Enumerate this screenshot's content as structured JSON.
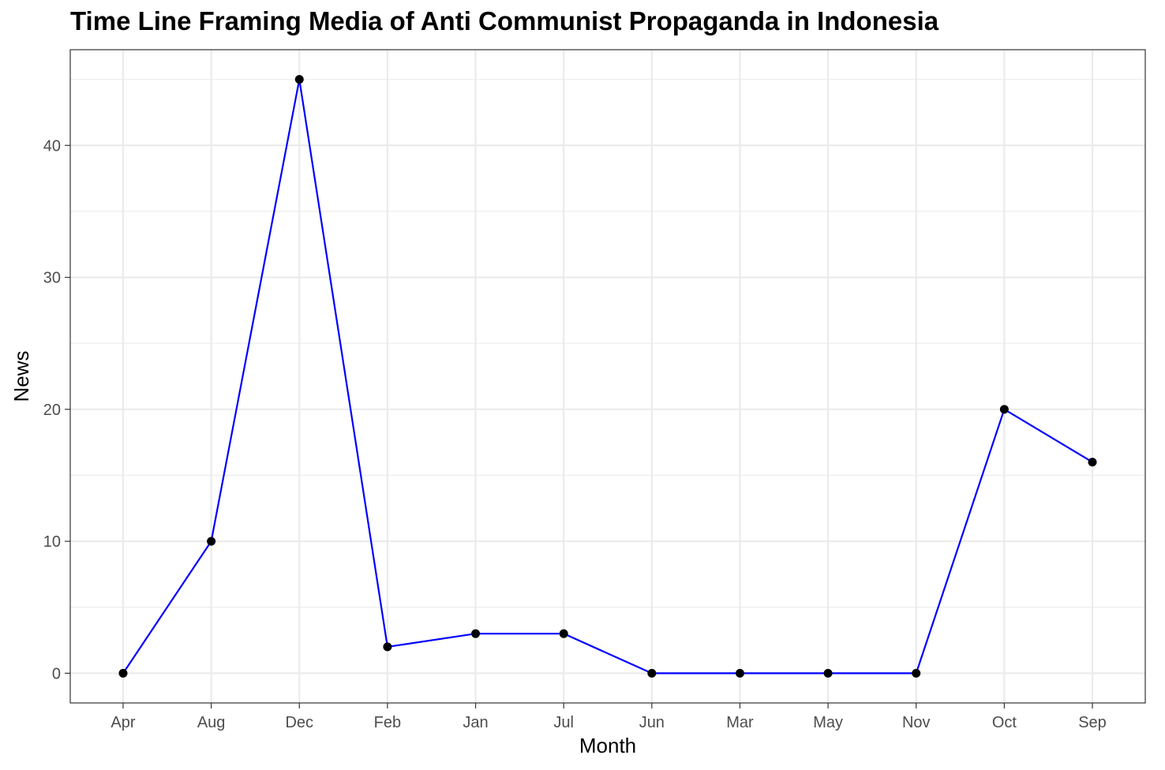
{
  "chart_data": {
    "type": "line",
    "title": "Time Line Framing Media of Anti Communist Propaganda in Indonesia",
    "xlabel": "Month",
    "ylabel": "News",
    "categories": [
      "Apr",
      "Aug",
      "Dec",
      "Feb",
      "Jan",
      "Jul",
      "Jun",
      "Mar",
      "May",
      "Nov",
      "Oct",
      "Sep"
    ],
    "series": [
      {
        "values": [
          0,
          10,
          45,
          2,
          3,
          3,
          0,
          0,
          0,
          0,
          20,
          16
        ]
      }
    ],
    "yticks": [
      0,
      10,
      20,
      30,
      40
    ],
    "ylim": [
      -2.25,
      47.25
    ],
    "grid": true,
    "line_color": "#0000ff",
    "point_color": "#000000",
    "gridline_color": "#ebebeb",
    "panel_border_color": "#333333"
  }
}
